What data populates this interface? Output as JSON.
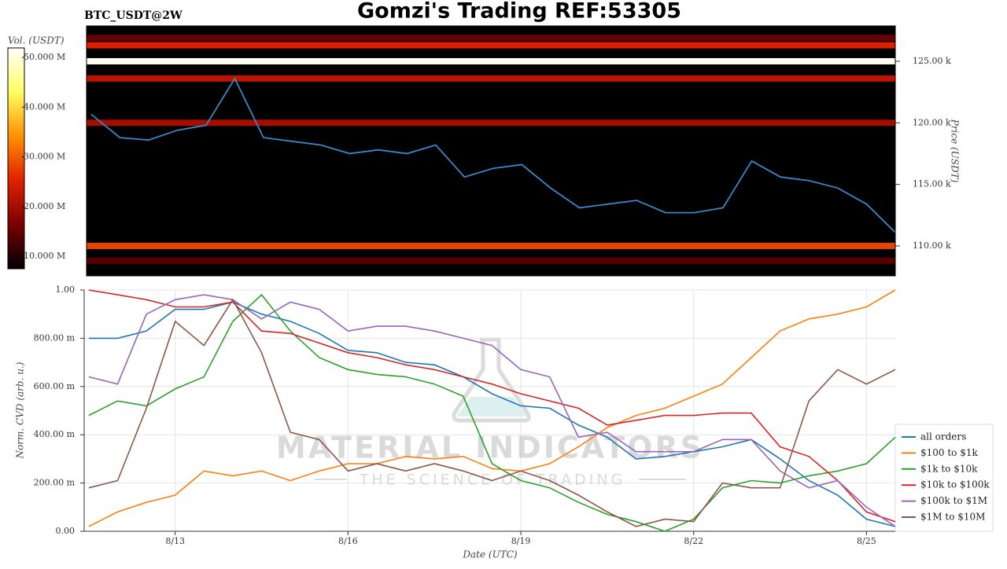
{
  "header": {
    "title": "Gomzi's Trading REF:53305",
    "symbol": "BTC_USDT@2W"
  },
  "chart_data": [
    {
      "type": "heatmap",
      "ylabel": "Price (USDT)",
      "x": [
        11.5,
        12,
        12.5,
        13,
        13.5,
        14,
        14.5,
        15,
        15.5,
        16,
        16.5,
        17,
        17.5,
        18,
        18.5,
        19,
        19.5,
        20,
        20.5,
        21,
        21.5,
        22,
        22.5,
        23,
        23.5,
        24,
        24.5,
        25,
        25.5
      ],
      "xlim": [
        11.42,
        25.5
      ],
      "ylim": [
        107570,
        127870
      ],
      "yticks": [
        {
          "value": 110000,
          "label": "110.00 k"
        },
        {
          "value": 115000,
          "label": "115.00 k"
        },
        {
          "value": 120000,
          "label": "120.00 k"
        },
        {
          "value": 125000,
          "label": "125.00 k"
        }
      ],
      "line": {
        "color": "#3a87c8",
        "values": [
          120700,
          118800,
          118600,
          119400,
          119800,
          123600,
          118800,
          118500,
          118200,
          117500,
          117800,
          117500,
          118200,
          115600,
          116300,
          116600,
          114700,
          113100,
          113400,
          113700,
          112700,
          112700,
          113100,
          116900,
          115600,
          115300,
          114700,
          113400,
          111100
        ]
      },
      "levels": [
        125000,
        126300,
        126900,
        123600,
        120000,
        110000,
        108800
      ],
      "volumes": [
        51000000,
        25000000,
        15000000,
        22000000,
        20000000,
        28000000,
        14000000
      ],
      "colorbar": {
        "label": "Vol. (USDT)",
        "vlim": [
          7500000,
          51900000
        ],
        "ticks": [
          {
            "value": 10000000,
            "label": "10.000 M"
          },
          {
            "value": 20000000,
            "label": "20.000 M"
          },
          {
            "value": 30000000,
            "label": "30.000 M"
          },
          {
            "value": 40000000,
            "label": "40.000 M"
          },
          {
            "value": 50000000,
            "label": "50.000 M"
          }
        ],
        "colors": [
          "#000000",
          "#7a0000",
          "#e02000",
          "#ff9000",
          "#ffff60",
          "#ffffff"
        ]
      }
    },
    {
      "type": "line",
      "xlabel": "Date (UTC)",
      "ylabel": "Norm. CVD (arb. u.)",
      "x": [
        11.5,
        12,
        12.5,
        13,
        13.5,
        14,
        14.5,
        15,
        15.5,
        16,
        16.5,
        17,
        17.5,
        18,
        18.5,
        19,
        19.5,
        20,
        20.5,
        21,
        21.5,
        22,
        22.5,
        23,
        23.5,
        24,
        24.5,
        25,
        25.5
      ],
      "xlim": [
        11.42,
        25.5
      ],
      "xticks": [
        {
          "value": 13,
          "label": "8/13"
        },
        {
          "value": 16,
          "label": "8/16"
        },
        {
          "value": 19,
          "label": "8/19"
        },
        {
          "value": 22,
          "label": "8/22"
        },
        {
          "value": 25,
          "label": "8/25"
        }
      ],
      "ylim": [
        0,
        1
      ],
      "yticks": [
        {
          "value": 0,
          "label": "0.00"
        },
        {
          "value": 0.2,
          "label": "200.00 m"
        },
        {
          "value": 0.4,
          "label": "400.00 m"
        },
        {
          "value": 0.6,
          "label": "600.00 m"
        },
        {
          "value": 0.8,
          "label": "800.00 m"
        },
        {
          "value": 1,
          "label": "1.00"
        }
      ],
      "grid": true,
      "legend": "right",
      "watermark": {
        "title": "MATERIAL INDICATORS",
        "subtitle": "THE SCIENCE OF TRADING"
      },
      "series": [
        {
          "name": "all orders",
          "color": "#1f77b4",
          "values": [
            0.8,
            0.8,
            0.83,
            0.92,
            0.92,
            0.95,
            0.9,
            0.87,
            0.82,
            0.75,
            0.74,
            0.7,
            0.69,
            0.64,
            0.57,
            0.52,
            0.51,
            0.44,
            0.39,
            0.3,
            0.31,
            0.33,
            0.35,
            0.38,
            0.3,
            0.21,
            0.15,
            0.05,
            0.02
          ]
        },
        {
          "name": "$100 to $1k",
          "color": "#ff7f0e",
          "values": [
            0.02,
            0.08,
            0.12,
            0.15,
            0.25,
            0.23,
            0.25,
            0.21,
            0.25,
            0.28,
            0.28,
            0.31,
            0.3,
            0.31,
            0.26,
            0.25,
            0.28,
            0.35,
            0.43,
            0.48,
            0.51,
            0.56,
            0.61,
            0.72,
            0.83,
            0.88,
            0.9,
            0.93,
            1.0
          ]
        },
        {
          "name": "$1k to $10k",
          "color": "#2ca02c",
          "values": [
            0.48,
            0.54,
            0.52,
            0.59,
            0.64,
            0.87,
            0.98,
            0.83,
            0.72,
            0.67,
            0.65,
            0.64,
            0.61,
            0.56,
            0.28,
            0.21,
            0.18,
            0.12,
            0.07,
            0.04,
            0.0,
            0.05,
            0.18,
            0.21,
            0.2,
            0.23,
            0.25,
            0.28,
            0.39
          ]
        },
        {
          "name": "$10k to $100k",
          "color": "#d62728",
          "values": [
            1.0,
            0.98,
            0.96,
            0.93,
            0.93,
            0.95,
            0.83,
            0.82,
            0.78,
            0.74,
            0.72,
            0.69,
            0.67,
            0.64,
            0.61,
            0.57,
            0.54,
            0.51,
            0.44,
            0.46,
            0.48,
            0.48,
            0.49,
            0.49,
            0.35,
            0.31,
            0.21,
            0.08,
            0.04
          ]
        },
        {
          "name": "$100k to $1M",
          "color": "#9467bd",
          "values": [
            0.64,
            0.61,
            0.9,
            0.96,
            0.98,
            0.96,
            0.88,
            0.95,
            0.92,
            0.83,
            0.85,
            0.85,
            0.83,
            0.8,
            0.77,
            0.67,
            0.64,
            0.39,
            0.41,
            0.33,
            0.33,
            0.33,
            0.38,
            0.38,
            0.25,
            0.18,
            0.21,
            0.1,
            0.02
          ]
        },
        {
          "name": "$1M to $10M",
          "color": "#8c564b",
          "values": [
            0.18,
            0.21,
            0.51,
            0.87,
            0.77,
            0.96,
            0.74,
            0.41,
            0.38,
            0.25,
            0.28,
            0.25,
            0.28,
            0.25,
            0.21,
            0.25,
            0.21,
            0.15,
            0.08,
            0.02,
            0.05,
            0.04,
            0.2,
            0.18,
            0.18,
            0.54,
            0.67,
            0.61,
            0.67
          ]
        }
      ]
    }
  ]
}
